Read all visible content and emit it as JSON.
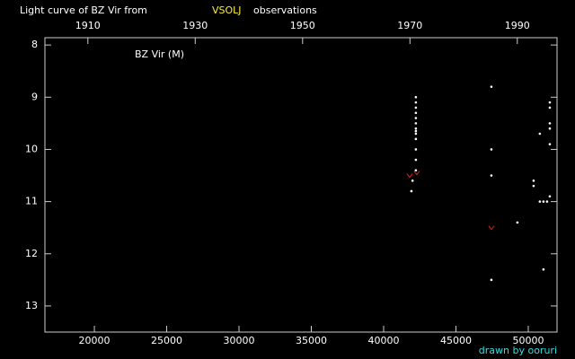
{
  "chart_data": {
    "type": "scatter",
    "title": "Light curve of BZ Vir from",
    "source": "VSOLJ",
    "title_end": "observations",
    "star_label": "BZ Vir (M)",
    "credit": "drawn by ooruri",
    "xlim": [
      16580,
      51990
    ],
    "xticks": [
      20000,
      25000,
      30000,
      35000,
      40000,
      45000,
      50000
    ],
    "x2lim": [
      1902,
      1997.4
    ],
    "x2ticks": [
      1910,
      1930,
      1950,
      1970,
      1990
    ],
    "ylim": [
      13.5,
      7.86
    ],
    "yticks": [
      8,
      9,
      10,
      11,
      12,
      13
    ],
    "series": [
      {
        "color": "#ffffff",
        "marker": "dot",
        "x": [
          42230,
          42230,
          42230,
          42230,
          42230,
          42230,
          42230,
          42230,
          42230,
          42230,
          42230,
          42230,
          42230,
          42000,
          41920,
          47450,
          47450,
          47450,
          47450,
          49250,
          50370,
          50370,
          50800,
          50800,
          51050,
          51300,
          51050,
          51490,
          51490,
          51490,
          51490,
          51490,
          51490
        ],
        "values": [
          9.0,
          9.1,
          9.2,
          9.3,
          9.4,
          9.5,
          9.6,
          9.65,
          9.7,
          9.8,
          10.0,
          10.2,
          10.4,
          10.6,
          10.8,
          8.8,
          10.0,
          10.5,
          12.5,
          11.4,
          10.6,
          10.7,
          9.7,
          11.0,
          11.0,
          11.0,
          12.3,
          9.1,
          9.2,
          9.5,
          9.6,
          9.9,
          10.9
        ]
      },
      {
        "color": "#dd2222",
        "marker": "v",
        "x": [
          41800,
          42290,
          47450
        ],
        "values": [
          10.5,
          10.45,
          11.5
        ]
      }
    ]
  }
}
